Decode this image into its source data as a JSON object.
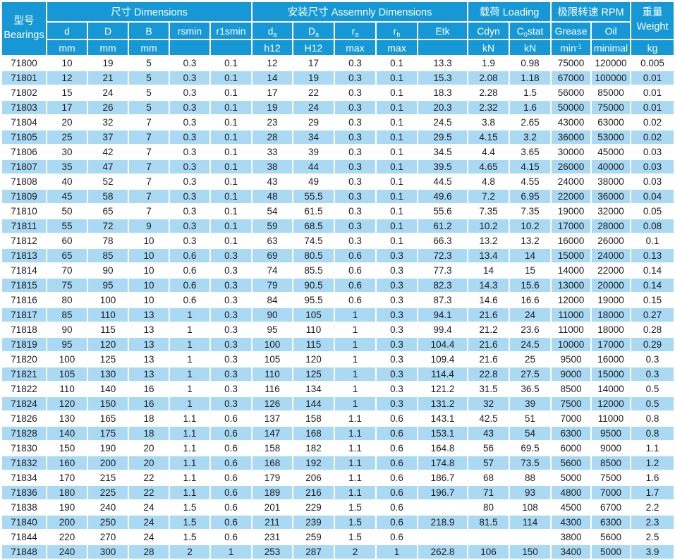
{
  "colors": {
    "header_bg": "#1598d5",
    "row_alt_bg": "#a9d9f3",
    "row_bg": "#ffffff",
    "header_text": "#ffffff",
    "cell_text": "#1d1d1f"
  },
  "table": {
    "header": {
      "corner": [
        "型号",
        "Bearings"
      ],
      "groups": [
        {
          "label": "尺寸 Dimensions",
          "span": 5
        },
        {
          "label": "安装尺寸 Assemnly Dimensions",
          "span": 5
        },
        {
          "label": "载荷 Loading",
          "span": 2
        },
        {
          "label": "极限转速 RPM",
          "span": 2
        }
      ],
      "weight": [
        "重量",
        "Weight"
      ],
      "col_names": [
        [
          {
            "t": "d"
          }
        ],
        [
          {
            "t": "D"
          }
        ],
        [
          {
            "t": "B"
          }
        ],
        [
          {
            "t": "rsmin"
          }
        ],
        [
          {
            "t": "r1smin"
          }
        ],
        [
          {
            "t": "d"
          },
          {
            "t": "a",
            "m": "sub"
          }
        ],
        [
          {
            "t": "D"
          },
          {
            "t": "a",
            "m": "sub"
          }
        ],
        [
          {
            "t": "r"
          },
          {
            "t": "a",
            "m": "sub"
          }
        ],
        [
          {
            "t": "r"
          },
          {
            "t": "b",
            "m": "sub"
          }
        ],
        [
          {
            "t": "Etk"
          }
        ],
        [
          {
            "t": "Cdyn"
          }
        ],
        [
          {
            "t": "C"
          },
          {
            "t": "0",
            "m": "sub"
          },
          {
            "t": "stat"
          }
        ],
        [
          {
            "t": "Grease"
          }
        ],
        [
          {
            "t": "Oil"
          }
        ]
      ],
      "units": [
        [
          {
            "t": "mm"
          }
        ],
        [
          {
            "t": "mm"
          }
        ],
        [
          {
            "t": "mm"
          }
        ],
        [],
        [],
        [
          {
            "t": "h12"
          }
        ],
        [
          {
            "t": "H12"
          }
        ],
        [
          {
            "t": "max"
          }
        ],
        [
          {
            "t": "max"
          }
        ],
        [],
        [
          {
            "t": "kN"
          }
        ],
        [
          {
            "t": "kN"
          }
        ],
        [
          {
            "t": "min"
          },
          {
            "t": "-1",
            "m": "sup"
          }
        ],
        [
          {
            "t": "minimal"
          }
        ],
        [
          {
            "t": "kg"
          }
        ]
      ]
    },
    "rows": [
      [
        "71800",
        "10",
        "19",
        "5",
        "0.3",
        "0.1",
        "12",
        "17",
        "0.3",
        "0.1",
        "13.3",
        "1.9",
        "0.98",
        "75000",
        "120000",
        "0.005"
      ],
      [
        "71801",
        "12",
        "21",
        "5",
        "0.3",
        "0.1",
        "14",
        "19",
        "0.3",
        "0.1",
        "15.3",
        "2.08",
        "1.18",
        "67000",
        "100000",
        "0.01"
      ],
      [
        "71802",
        "15",
        "24",
        "5",
        "0.3",
        "0.1",
        "17",
        "22",
        "0.3",
        "0.1",
        "18.3",
        "2.28",
        "1.5",
        "56000",
        "85000",
        "0.01"
      ],
      [
        "71803",
        "17",
        "26",
        "5",
        "0.3",
        "0.1",
        "19",
        "24",
        "0.3",
        "0.1",
        "20.3",
        "2.32",
        "1.6",
        "50000",
        "75000",
        "0.01"
      ],
      [
        "71804",
        "20",
        "32",
        "7",
        "0.3",
        "0.1",
        "23",
        "29",
        "0.3",
        "0.1",
        "24.5",
        "3.8",
        "2.65",
        "43000",
        "63000",
        "0.02"
      ],
      [
        "71805",
        "25",
        "37",
        "7",
        "0.3",
        "0.1",
        "28",
        "34",
        "0.3",
        "0.1",
        "29.5",
        "4.15",
        "3.2",
        "36000",
        "53000",
        "0.02"
      ],
      [
        "71806",
        "30",
        "42",
        "7",
        "0.3",
        "0.1",
        "33",
        "39",
        "0.3",
        "0.1",
        "34.5",
        "4.4",
        "3.65",
        "30000",
        "45000",
        "0.03"
      ],
      [
        "71807",
        "35",
        "47",
        "7",
        "0.3",
        "0.1",
        "38",
        "44",
        "0.3",
        "0.1",
        "39.5",
        "4.65",
        "4.15",
        "26000",
        "40000",
        "0.03"
      ],
      [
        "71808",
        "40",
        "52",
        "7",
        "0.3",
        "0.1",
        "43",
        "49",
        "0.3",
        "0.1",
        "44.5",
        "4.8",
        "4.55",
        "24000",
        "38000",
        "0.03"
      ],
      [
        "71809",
        "45",
        "58",
        "7",
        "0.3",
        "0.1",
        "48",
        "55.5",
        "0.3",
        "0.1",
        "49.6",
        "7.2",
        "6.95",
        "22000",
        "36000",
        "0.04"
      ],
      [
        "71810",
        "50",
        "65",
        "7",
        "0.3",
        "0.1",
        "54",
        "61.5",
        "0.3",
        "0.1",
        "55.6",
        "7.35",
        "7.35",
        "19000",
        "32000",
        "0.05"
      ],
      [
        "71811",
        "55",
        "72",
        "9",
        "0.3",
        "0.1",
        "59",
        "68.5",
        "0.3",
        "0.1",
        "61.2",
        "10.2",
        "10.2",
        "17000",
        "28000",
        "0.08"
      ],
      [
        "71812",
        "60",
        "78",
        "10",
        "0.3",
        "0.1",
        "63",
        "74.5",
        "0.3",
        "0.1",
        "66.3",
        "13.2",
        "13.2",
        "16000",
        "26000",
        "0.1"
      ],
      [
        "71813",
        "65",
        "85",
        "10",
        "0.6",
        "0.3",
        "69",
        "80.5",
        "0.6",
        "0.3",
        "72.3",
        "13.4",
        "14",
        "15000",
        "24000",
        "0.13"
      ],
      [
        "71814",
        "70",
        "90",
        "10",
        "0.6",
        "0.3",
        "74",
        "85.5",
        "0.6",
        "0.3",
        "77.3",
        "14",
        "15",
        "14000",
        "22000",
        "0.14"
      ],
      [
        "71815",
        "75",
        "95",
        "10",
        "0.6",
        "0.3",
        "79",
        "90.5",
        "0.6",
        "0.3",
        "82.3",
        "14.3",
        "15.6",
        "13000",
        "20000",
        "0.14"
      ],
      [
        "71816",
        "80",
        "100",
        "10",
        "0.6",
        "0.3",
        "84",
        "95.5",
        "0.6",
        "0.3",
        "87.3",
        "14.6",
        "16.6",
        "12000",
        "19000",
        "0.15"
      ],
      [
        "71817",
        "85",
        "110",
        "13",
        "1",
        "0.3",
        "90",
        "105",
        "1",
        "0.3",
        "94.1",
        "21.6",
        "24",
        "11000",
        "18000",
        "0.27"
      ],
      [
        "71818",
        "90",
        "115",
        "13",
        "1",
        "0.3",
        "95",
        "110",
        "1",
        "0.3",
        "99.4",
        "21.2",
        "23.6",
        "11000",
        "18000",
        "0.28"
      ],
      [
        "71819",
        "95",
        "120",
        "13",
        "1",
        "0.3",
        "100",
        "115",
        "1",
        "0.3",
        "104.4",
        "21.6",
        "24.5",
        "10000",
        "17000",
        "0.29"
      ],
      [
        "71820",
        "100",
        "125",
        "13",
        "1",
        "0.3",
        "105",
        "120",
        "1",
        "0.3",
        "109.4",
        "21.6",
        "25",
        "9500",
        "16000",
        "0.3"
      ],
      [
        "71821",
        "105",
        "130",
        "13",
        "1",
        "0.3",
        "110",
        "125",
        "1",
        "0.3",
        "114.4",
        "22.8",
        "27.5",
        "9000",
        "15000",
        "0.3"
      ],
      [
        "71822",
        "110",
        "140",
        "16",
        "1",
        "0.3",
        "116",
        "134",
        "1",
        "0.3",
        "121.2",
        "31.5",
        "36.5",
        "8500",
        "14000",
        "0.5"
      ],
      [
        "71824",
        "120",
        "150",
        "16",
        "1",
        "0.3",
        "126",
        "144",
        "1",
        "0.3",
        "131.2",
        "32",
        "39",
        "7500",
        "12000",
        "0.5"
      ],
      [
        "71826",
        "130",
        "165",
        "18",
        "1.1",
        "0.6",
        "137",
        "158",
        "1.1",
        "0.6",
        "143.1",
        "42.5",
        "51",
        "7000",
        "11000",
        "0.8"
      ],
      [
        "71828",
        "140",
        "175",
        "18",
        "1.1",
        "0.6",
        "147",
        "168",
        "1.1",
        "0.6",
        "153.1",
        "43",
        "54",
        "6300",
        "9500",
        "0.8"
      ],
      [
        "71830",
        "150",
        "190",
        "20",
        "1.1",
        "0.6",
        "158",
        "182",
        "1.1",
        "0.6",
        "164.8",
        "56",
        "69.5",
        "6000",
        "9000",
        "1.1"
      ],
      [
        "71832",
        "160",
        "200",
        "20",
        "1.1",
        "0.6",
        "168",
        "192",
        "1.1",
        "0.6",
        "174.8",
        "57",
        "73.5",
        "5600",
        "8500",
        "1.2"
      ],
      [
        "71834",
        "170",
        "215",
        "22",
        "1.1",
        "0.6",
        "179",
        "206",
        "1.1",
        "0.6",
        "186.7",
        "68",
        "88",
        "5000",
        "7500",
        "1.6"
      ],
      [
        "71836",
        "180",
        "225",
        "22",
        "1.1",
        "0.6",
        "189",
        "216",
        "1.1",
        "0.6",
        "196.7",
        "71",
        "93",
        "4800",
        "7000",
        "1.7"
      ],
      [
        "71838",
        "190",
        "240",
        "24",
        "1.5",
        "0.6",
        "201",
        "229",
        "1.5",
        "0.6",
        "",
        "80",
        "108",
        "4500",
        "6700",
        "2.2"
      ],
      [
        "71840",
        "200",
        "250",
        "24",
        "1.5",
        "0.6",
        "211",
        "239",
        "1.5",
        "0.6",
        "218.9",
        "81.5",
        "114",
        "4300",
        "6300",
        "2.3"
      ],
      [
        "71844",
        "220",
        "270",
        "24",
        "1.5",
        "0.6",
        "231",
        "259",
        "1.5",
        "0.6",
        "",
        "",
        "",
        "3800",
        "5600",
        "2.5"
      ],
      [
        "71848",
        "240",
        "300",
        "28",
        "2",
        "1",
        "253",
        "287",
        "2",
        "1",
        "262.8",
        "106",
        "150",
        "3400",
        "5000",
        "3.9"
      ]
    ]
  }
}
